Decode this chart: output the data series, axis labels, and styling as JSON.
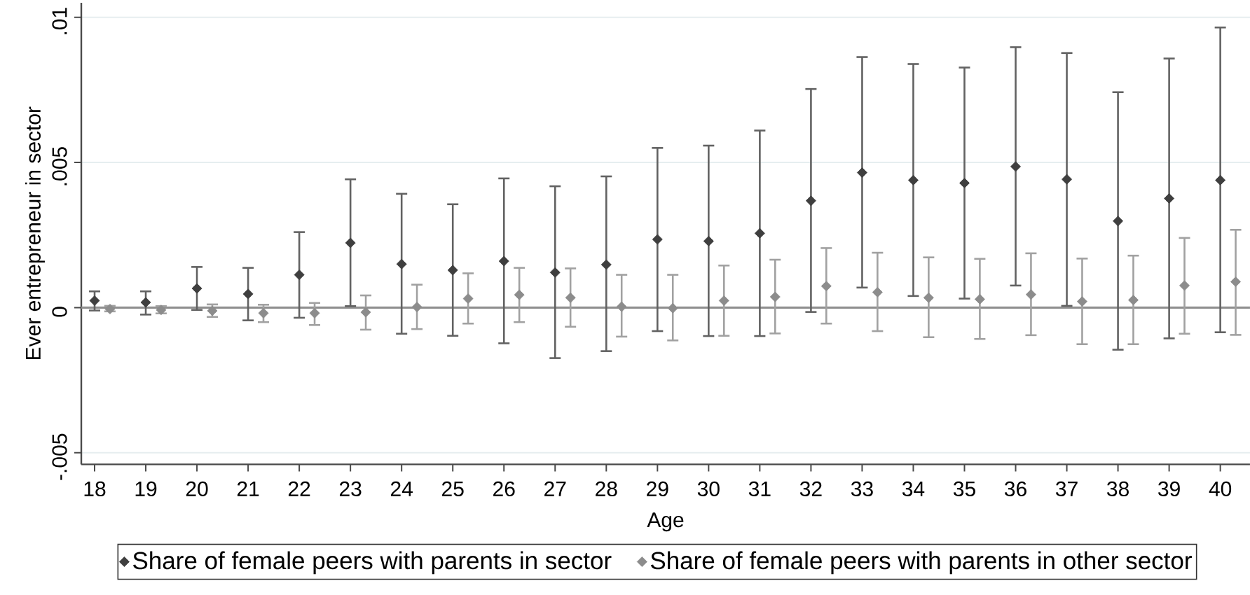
{
  "chart_data": {
    "type": "scatter",
    "xlabel": "Age",
    "ylabel": "Ever entrepreneur in sector",
    "x": [
      18,
      19,
      20,
      21,
      22,
      23,
      24,
      25,
      26,
      27,
      28,
      29,
      30,
      31,
      32,
      33,
      34,
      35,
      36,
      37,
      38,
      39,
      40
    ],
    "xlim": [
      17.74,
      40.58
    ],
    "ylim": [
      -0.0054,
      0.0105
    ],
    "xticks": [
      18,
      19,
      20,
      21,
      22,
      23,
      24,
      25,
      26,
      27,
      28,
      29,
      30,
      31,
      32,
      33,
      34,
      35,
      36,
      37,
      38,
      39,
      40
    ],
    "yticks": [
      {
        "value": -0.005,
        "label": "-.005"
      },
      0,
      {
        "value": 0.005,
        "label": ".005"
      },
      {
        "value": 0.01,
        "label": ".01"
      }
    ],
    "grid": "y",
    "legend": "bottom",
    "marker": "diamond",
    "ref_lines": [
      {
        "axis": "y",
        "value": 0,
        "color": "#8f8f8f"
      }
    ],
    "series": [
      {
        "name": "Share of female peers with parents in sector",
        "color": "#3f3f3f",
        "values": [
          0.00024,
          0.00018,
          0.00066,
          0.00047,
          0.00113,
          0.00223,
          0.0015,
          0.00129,
          0.0016,
          0.00121,
          0.00148,
          0.00235,
          0.00229,
          0.00256,
          0.00368,
          0.00465,
          0.00439,
          0.00429,
          0.00486,
          0.00442,
          0.00298,
          0.00376,
          0.00439
        ],
        "errors": [
          [
            -0.0001,
            0.00056
          ],
          [
            -0.00024,
            0.00056
          ],
          [
            -8e-05,
            0.0014
          ],
          [
            -0.00044,
            0.00137
          ],
          [
            -0.00035,
            0.0026
          ],
          [
            5e-05,
            0.00442
          ],
          [
            -0.0009,
            0.00392
          ],
          [
            -0.00097,
            0.00356
          ],
          [
            -0.00123,
            0.00445
          ],
          [
            -0.00174,
            0.00418
          ],
          [
            -0.0015,
            0.00452
          ],
          [
            -0.00081,
            0.0055
          ],
          [
            -0.00098,
            0.00558
          ],
          [
            -0.00098,
            0.0061
          ],
          [
            -0.00015,
            0.00753
          ],
          [
            0.00069,
            0.00863
          ],
          [
            0.0004,
            0.00839
          ],
          [
            0.00031,
            0.00827
          ],
          [
            0.00076,
            0.00897
          ],
          [
            6e-05,
            0.00877
          ],
          [
            -0.00145,
            0.00742
          ],
          [
            -0.00106,
            0.00858
          ],
          [
            -0.00085,
            0.00965
          ]
        ]
      },
      {
        "name": "Share of female peers with parents in other sector",
        "color": "#8c8c8c",
        "x": [
          18.3,
          19.3,
          20.3,
          21.3,
          22.3,
          23.3,
          24.3,
          25.3,
          26.3,
          27.3,
          28.3,
          29.3,
          30.3,
          31.3,
          32.3,
          33.3,
          34.3,
          35.3,
          36.3,
          37.3,
          38.3,
          39.3,
          40.3
        ],
        "values": [
          -5e-05,
          -8e-05,
          -0.00011,
          -0.00019,
          -0.00019,
          -0.00016,
          2e-05,
          0.00031,
          0.00044,
          0.00034,
          3e-05,
          -2e-05,
          0.00024,
          0.00037,
          0.00074,
          0.00053,
          0.00034,
          0.00029,
          0.00045,
          0.00021,
          0.00026,
          0.00076,
          0.00089
        ],
        "errors": [
          [
            -0.00013,
            6e-05
          ],
          [
            -0.0002,
            5e-05
          ],
          [
            -0.00032,
            0.00011
          ],
          [
            -0.0005,
            0.0001
          ],
          [
            -0.0006,
            0.00016
          ],
          [
            -0.00076,
            0.00042
          ],
          [
            -0.00074,
            0.00079
          ],
          [
            -0.00055,
            0.00118
          ],
          [
            -0.0005,
            0.00137
          ],
          [
            -0.00066,
            0.00135
          ],
          [
            -0.001,
            0.00113
          ],
          [
            -0.00113,
            0.00113
          ],
          [
            -0.00097,
            0.00145
          ],
          [
            -0.00089,
            0.00165
          ],
          [
            -0.00055,
            0.00205
          ],
          [
            -0.00081,
            0.00189
          ],
          [
            -0.00102,
            0.00173
          ],
          [
            -0.00108,
            0.00168
          ],
          [
            -0.00095,
            0.00187
          ],
          [
            -0.00126,
            0.00169
          ],
          [
            -0.00126,
            0.00179
          ],
          [
            -0.0009,
            0.0024
          ],
          [
            -0.00094,
            0.00268
          ]
        ]
      }
    ]
  }
}
